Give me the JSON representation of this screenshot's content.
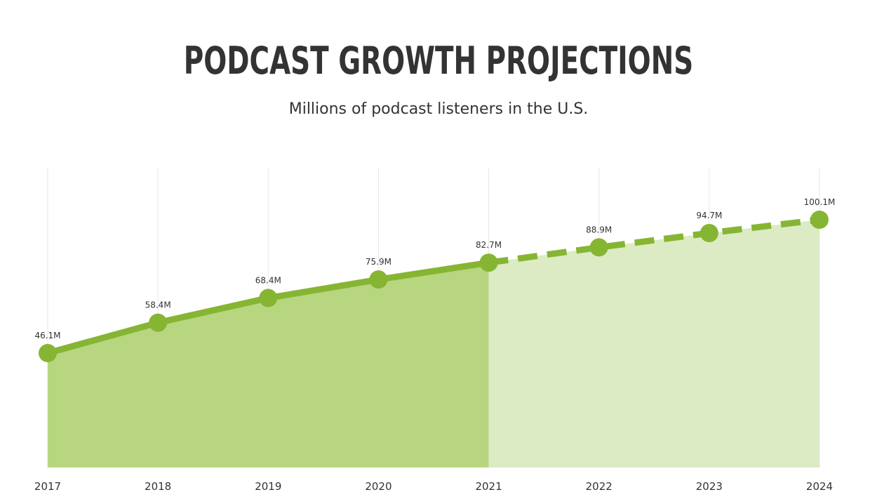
{
  "title": "PODCAST GROWTH PROJECTIONS",
  "subtitle": "Millions of podcast listeners in the U.S.",
  "colors": {
    "line": "#86b533",
    "marker": "#86b533",
    "fill_actual": "#b7d67f",
    "fill_projected": "#dcebc3",
    "gridline": "#e6e6e6",
    "text": "#333333"
  },
  "chart_data": {
    "type": "area",
    "title": "PODCAST GROWTH PROJECTIONS",
    "subtitle": "Millions of podcast listeners in the U.S.",
    "xlabel": "",
    "ylabel": "",
    "categories": [
      "2017",
      "2018",
      "2019",
      "2020",
      "2021",
      "2022",
      "2023",
      "2024"
    ],
    "series": [
      {
        "values": [
          46.1,
          58.4,
          68.4,
          75.9,
          82.7,
          88.9,
          94.7,
          100.1
        ],
        "labels": [
          "46.1M",
          "58.4M",
          "68.4M",
          "75.9M",
          "82.7M",
          "88.9M",
          "94.7M",
          "100.1M"
        ],
        "actual_through": "2021",
        "projected_from": "2021"
      }
    ],
    "grid": "vertical",
    "legend": "none"
  }
}
